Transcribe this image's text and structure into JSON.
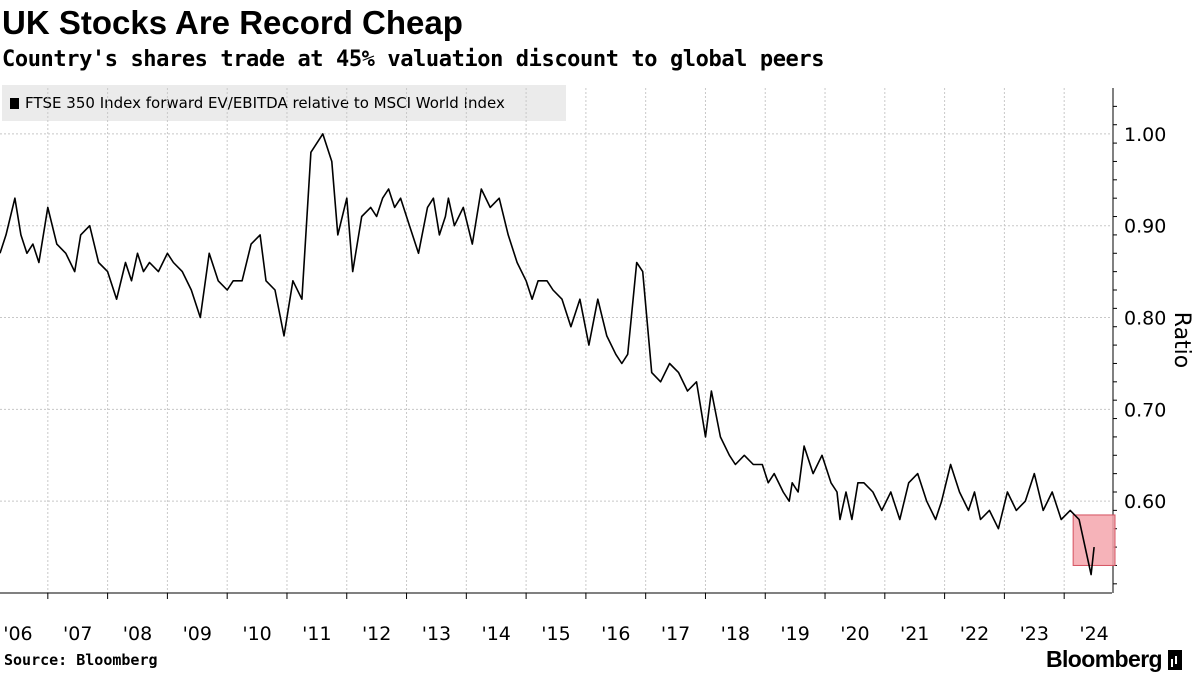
{
  "header": {
    "title": "UK Stocks Are Record Cheap",
    "subtitle": "Country's shares trade at 45% valuation discount to global peers"
  },
  "legend": {
    "label": "FTSE 350 Index forward EV/EBITDA relative to MSCI World Index"
  },
  "footer": {
    "source": "Source: Bloomberg",
    "brand": "Bloomberg"
  },
  "colors": {
    "line": "#000000",
    "grid": "#c8c8c8",
    "highlight_fill": "#f4a6ad",
    "highlight_stroke": "#d4515f",
    "legend_bg": "#ebebeb"
  },
  "chart_data": {
    "type": "line",
    "title": "UK Stocks Are Record Cheap",
    "subtitle": "Country's shares trade at 45% valuation discount to global peers",
    "ylabel": "Ratio",
    "xlabel": "",
    "xlim": [
      2005.7,
      2024.3
    ],
    "ylim": [
      0.5,
      1.05
    ],
    "y_ticks": [
      0.6,
      0.7,
      0.8,
      0.9,
      1.0
    ],
    "y_tick_labels": [
      "0.60",
      "0.70",
      "0.80",
      "0.90",
      "1.00"
    ],
    "x_tick_labels": [
      "'06",
      "'07",
      "'08",
      "'09",
      "'10",
      "'11",
      "'12",
      "'13",
      "'14",
      "'15",
      "'16",
      "'17",
      "'18",
      "'19",
      "'20",
      "'21",
      "'22",
      "'23",
      "'24"
    ],
    "x_tick_years": [
      2006,
      2007,
      2008,
      2009,
      2010,
      2011,
      2012,
      2013,
      2014,
      2015,
      2016,
      2017,
      2018,
      2019,
      2020,
      2021,
      2022,
      2023,
      2024
    ],
    "grid": true,
    "series": [
      {
        "name": "FTSE 350 Index forward EV/EBITDA relative to MSCI World Index",
        "x": [
          2005.7,
          2005.8,
          2005.95,
          2006.05,
          2006.15,
          2006.25,
          2006.35,
          2006.5,
          2006.65,
          2006.8,
          2006.95,
          2007.05,
          2007.2,
          2007.35,
          2007.5,
          2007.65,
          2007.8,
          2007.9,
          2008.0,
          2008.1,
          2008.2,
          2008.35,
          2008.5,
          2008.6,
          2008.75,
          2008.9,
          2009.05,
          2009.2,
          2009.35,
          2009.5,
          2009.6,
          2009.75,
          2009.9,
          2010.05,
          2010.15,
          2010.3,
          2010.45,
          2010.6,
          2010.75,
          2010.9,
          2011.1,
          2011.25,
          2011.35,
          2011.5,
          2011.6,
          2011.75,
          2011.9,
          2012.0,
          2012.1,
          2012.2,
          2012.3,
          2012.4,
          2012.55,
          2012.7,
          2012.85,
          2012.95,
          2013.05,
          2013.15,
          2013.2,
          2013.3,
          2013.45,
          2013.6,
          2013.75,
          2013.9,
          2014.05,
          2014.2,
          2014.35,
          2014.5,
          2014.6,
          2014.7,
          2014.85,
          2014.95,
          2015.1,
          2015.25,
          2015.4,
          2015.55,
          2015.7,
          2015.85,
          2016.0,
          2016.1,
          2016.2,
          2016.35,
          2016.45,
          2016.6,
          2016.75,
          2016.9,
          2017.05,
          2017.2,
          2017.35,
          2017.5,
          2017.6,
          2017.75,
          2017.9,
          2018.0,
          2018.15,
          2018.3,
          2018.45,
          2018.55,
          2018.65,
          2018.8,
          2018.9,
          2018.95,
          2019.05,
          2019.15,
          2019.3,
          2019.45,
          2019.6,
          2019.7,
          2019.75,
          2019.85,
          2019.95,
          2020.05,
          2020.15,
          2020.3,
          2020.45,
          2020.6,
          2020.75,
          2020.9,
          2021.05,
          2021.2,
          2021.35,
          2021.45,
          2021.6,
          2021.75,
          2021.9,
          2022.0,
          2022.1,
          2022.25,
          2022.4,
          2022.55,
          2022.7,
          2022.85,
          2023.0,
          2023.15,
          2023.3,
          2023.45,
          2023.6,
          2023.75,
          2023.85,
          2023.95,
          2024.0
        ],
        "values": [
          0.87,
          0.89,
          0.93,
          0.89,
          0.87,
          0.88,
          0.86,
          0.92,
          0.88,
          0.87,
          0.85,
          0.89,
          0.9,
          0.86,
          0.85,
          0.82,
          0.86,
          0.84,
          0.87,
          0.85,
          0.86,
          0.85,
          0.87,
          0.86,
          0.85,
          0.83,
          0.8,
          0.87,
          0.84,
          0.83,
          0.84,
          0.84,
          0.88,
          0.89,
          0.84,
          0.83,
          0.78,
          0.84,
          0.82,
          0.98,
          1.0,
          0.97,
          0.89,
          0.93,
          0.85,
          0.91,
          0.92,
          0.91,
          0.93,
          0.94,
          0.92,
          0.93,
          0.9,
          0.87,
          0.92,
          0.93,
          0.89,
          0.91,
          0.93,
          0.9,
          0.92,
          0.88,
          0.94,
          0.92,
          0.93,
          0.89,
          0.86,
          0.84,
          0.82,
          0.84,
          0.84,
          0.83,
          0.82,
          0.79,
          0.82,
          0.77,
          0.82,
          0.78,
          0.76,
          0.75,
          0.76,
          0.86,
          0.85,
          0.74,
          0.73,
          0.75,
          0.74,
          0.72,
          0.73,
          0.67,
          0.72,
          0.67,
          0.65,
          0.64,
          0.65,
          0.64,
          0.64,
          0.62,
          0.63,
          0.61,
          0.6,
          0.62,
          0.61,
          0.66,
          0.63,
          0.65,
          0.62,
          0.61,
          0.58,
          0.61,
          0.58,
          0.62,
          0.62,
          0.61,
          0.59,
          0.61,
          0.58,
          0.62,
          0.63,
          0.6,
          0.58,
          0.6,
          0.64,
          0.61,
          0.59,
          0.61,
          0.58,
          0.59,
          0.57,
          0.61,
          0.59,
          0.6,
          0.63,
          0.59,
          0.61,
          0.58,
          0.59,
          0.58,
          0.55,
          0.52,
          0.55
        ]
      }
    ],
    "annotations": [
      {
        "type": "highlight-box",
        "x_range": [
          2023.65,
          2024.35
        ],
        "y_range": [
          0.53,
          0.585
        ]
      }
    ]
  }
}
